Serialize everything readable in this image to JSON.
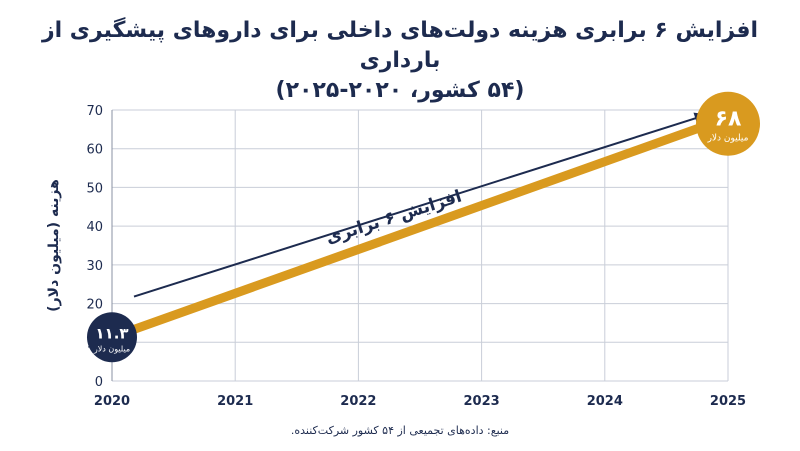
{
  "title": {
    "line1": "افزایش ۶ برابری هزینه دولت‌های داخلی برای داروهای پیشگیری از بارداری",
    "line2": "(۵۴ کشور، ۲۰۲۰-۲۰۲۵)"
  },
  "source": "منبع: داده‌های تجمیعی از ۵۴ کشور شرکت‌کننده.",
  "colors": {
    "navy": "#1d2b4f",
    "gold": "#d99a1f",
    "grid": "#c9ced8"
  },
  "chart_data": {
    "type": "line",
    "title": "افزایش ۶ برابری هزینه دولت‌های داخلی برای داروهای پیشگیری از بارداری",
    "subtitle": "(۵۴ کشور، ۲۰۲۰-۲۰۲۵)",
    "ylabel": "هزینه (میلیون دلار)",
    "xlabel": "",
    "x_ticks": [
      "2020",
      "2021",
      "2022",
      "2023",
      "2024",
      "2025"
    ],
    "y_ticks": [
      "0",
      "10",
      "20",
      "30",
      "40",
      "50",
      "60",
      "70"
    ],
    "ylim": [
      0,
      70
    ],
    "grid": true,
    "series": [
      {
        "points": [
          {
            "x": 2020,
            "y": 11.3
          },
          {
            "x": 2025,
            "y": 68
          }
        ]
      }
    ],
    "annotations": {
      "start_value": "۱۱.۳",
      "start_unit": "میلیون دلار",
      "end_value": "۶۸",
      "end_unit": "میلیون دلار",
      "arrow_label": "افزایش ۶ برابری"
    }
  }
}
